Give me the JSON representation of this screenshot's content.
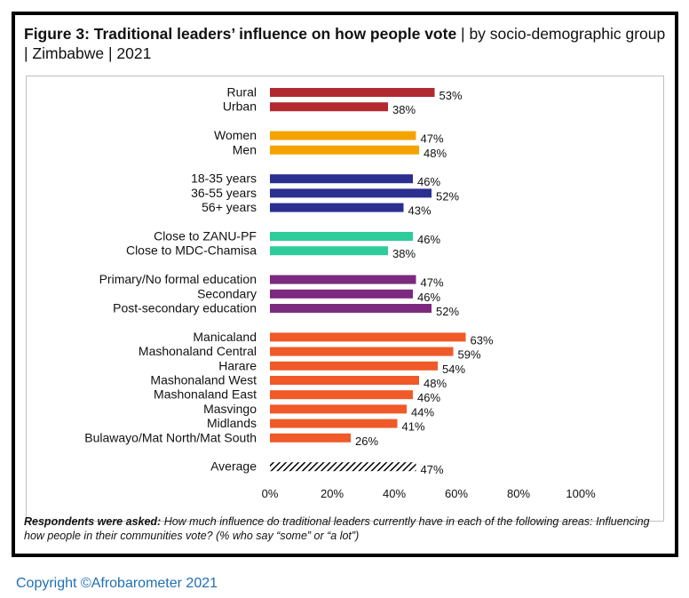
{
  "title": {
    "bold": "Figure 3: Traditional leaders’ influence on how people vote",
    "rest": " | by socio-demographic group | Zimbabwe | 2021"
  },
  "footnote": {
    "bold": "Respondents were asked:",
    "rest": " How much influence do traditional leaders currently have in each of the following areas: Influencing how people in their communities vote? (% who say “some” or “a lot”)"
  },
  "copyright": "Copyright ©Afrobarometer 2021",
  "chart_data": {
    "type": "bar",
    "orientation": "horizontal",
    "xlim": [
      0,
      100
    ],
    "xticks": [
      "0%",
      "20%",
      "40%",
      "60%",
      "80%",
      "100%"
    ],
    "grid": false,
    "groups": [
      {
        "color": "#b22a2f",
        "items": [
          {
            "label": "Rural",
            "value": 53,
            "value_label": "53%"
          },
          {
            "label": "Urban",
            "value": 38,
            "value_label": "38%"
          }
        ]
      },
      {
        "color": "#f5a300",
        "items": [
          {
            "label": "Women",
            "value": 47,
            "value_label": "47%"
          },
          {
            "label": "Men",
            "value": 48,
            "value_label": "48%"
          }
        ]
      },
      {
        "color": "#2b2f8f",
        "items": [
          {
            "label": "18-35 years",
            "value": 46,
            "value_label": "46%"
          },
          {
            "label": "36-55 years",
            "value": 52,
            "value_label": "52%"
          },
          {
            "label": "56+ years",
            "value": 43,
            "value_label": "43%"
          }
        ]
      },
      {
        "color": "#2ecc9b",
        "items": [
          {
            "label": "Close to ZANU-PF",
            "value": 46,
            "value_label": "46%"
          },
          {
            "label": "Close to MDC-Chamisa",
            "value": 38,
            "value_label": "38%"
          }
        ]
      },
      {
        "color": "#7b2a7f",
        "items": [
          {
            "label": "Primary/No formal education",
            "value": 47,
            "value_label": "47%"
          },
          {
            "label": "Secondary",
            "value": 46,
            "value_label": "46%"
          },
          {
            "label": "Post-secondary education",
            "value": 52,
            "value_label": "52%"
          }
        ]
      },
      {
        "color": "#f05a28",
        "items": [
          {
            "label": "Manicaland",
            "value": 63,
            "value_label": "63%"
          },
          {
            "label": "Mashonaland Central",
            "value": 59,
            "value_label": "59%"
          },
          {
            "label": "Harare",
            "value": 54,
            "value_label": "54%"
          },
          {
            "label": "Mashonaland West",
            "value": 48,
            "value_label": "48%"
          },
          {
            "label": "Mashonaland East",
            "value": 46,
            "value_label": "46%"
          },
          {
            "label": "Masvingo",
            "value": 44,
            "value_label": "44%"
          },
          {
            "label": "Midlands",
            "value": 41,
            "value_label": "41%"
          },
          {
            "label": "Bulawayo/Mat  North/Mat South",
            "value": 26,
            "value_label": "26%"
          }
        ]
      },
      {
        "color": "#000000",
        "pattern": "hatched",
        "items": [
          {
            "label": "Average",
            "value": 47,
            "value_label": "47%"
          }
        ]
      }
    ]
  }
}
